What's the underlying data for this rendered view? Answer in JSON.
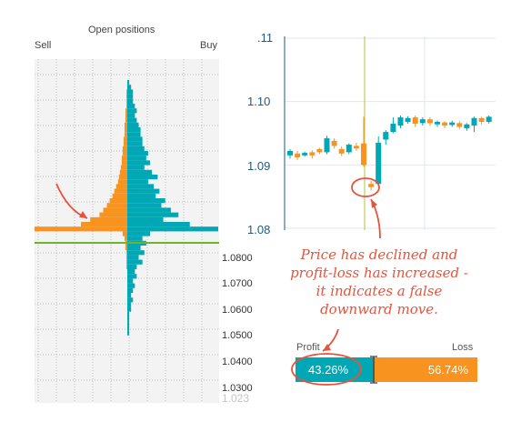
{
  "colors": {
    "sell": "#f7931e",
    "buy": "#00a8b5",
    "price_line": "#6cb32e",
    "annotation": "#e8523a",
    "axis": "#1e5a82",
    "grid": "#dfe7ee"
  },
  "panel": {
    "title": "Open positions",
    "sell_label": "Sell",
    "buy_label": "Buy",
    "price_ticks": [
      "1.0800",
      "1.0700",
      "1.0600",
      "1.0500",
      "1.0400",
      "1.0300"
    ],
    "faded_tick": "1.023"
  },
  "annotation": {
    "lines": [
      "Price has declined and",
      "profit-loss has increased -",
      "it indicates a false",
      "downward move."
    ]
  },
  "ratio": {
    "profit_label": "Profit",
    "loss_label": "Loss",
    "profit_text": "43.26%",
    "loss_text": "56.74%",
    "profit_pct": 43.26,
    "loss_pct": 56.74
  },
  "chart_data": [
    {
      "type": "bar",
      "title": "Open positions",
      "orientation": "horizontal",
      "x_axis": "price",
      "series": [
        {
          "name": "Sell",
          "values": [
            0,
            0,
            1,
            1,
            1,
            1,
            2,
            2,
            2,
            3,
            3,
            3,
            4,
            4,
            5,
            5,
            6,
            6,
            7,
            8,
            9,
            10,
            12,
            14,
            16,
            19,
            22,
            26,
            30,
            40,
            50,
            100,
            5,
            3,
            2,
            2,
            1,
            1,
            1,
            1,
            0,
            0,
            0,
            0,
            0,
            0,
            0,
            0,
            0,
            0,
            0,
            0,
            0,
            0
          ]
        },
        {
          "name": "Buy",
          "values": [
            1,
            2,
            3,
            3,
            3,
            4,
            5,
            4,
            5,
            6,
            7,
            7,
            8,
            8,
            9,
            11,
            10,
            12,
            9,
            13,
            16,
            11,
            14,
            17,
            15,
            20,
            18,
            23,
            27,
            19,
            33,
            48,
            12,
            8,
            10,
            7,
            9,
            6,
            8,
            5,
            4,
            5,
            3,
            4,
            3,
            2,
            3,
            2,
            2,
            1,
            1,
            1,
            1,
            1
          ]
        }
      ],
      "current_price": 1.0826,
      "price_ticks": [
        1.08,
        1.07,
        1.06,
        1.05,
        1.04,
        1.03
      ]
    },
    {
      "type": "candlestick",
      "y_ticks": [
        ".11",
        "1.10",
        "1.09",
        "1.08"
      ],
      "ylim": [
        1.08,
        1.11
      ],
      "candles": [
        {
          "o": 1.0915,
          "c": 1.0922,
          "h": 1.0925,
          "l": 1.091
        },
        {
          "o": 1.0918,
          "c": 1.0912,
          "h": 1.0922,
          "l": 1.0908
        },
        {
          "o": 1.0915,
          "c": 1.0919,
          "h": 1.0921,
          "l": 1.0913
        },
        {
          "o": 1.092,
          "c": 1.0915,
          "h": 1.0923,
          "l": 1.091
        },
        {
          "o": 1.0925,
          "c": 1.092,
          "h": 1.0927,
          "l": 1.0917
        },
        {
          "o": 1.092,
          "c": 1.0942,
          "h": 1.0946,
          "l": 1.0917
        },
        {
          "o": 1.0938,
          "c": 1.093,
          "h": 1.0942,
          "l": 1.0926
        },
        {
          "o": 1.0925,
          "c": 1.0918,
          "h": 1.0929,
          "l": 1.0914
        },
        {
          "o": 1.092,
          "c": 1.0932,
          "h": 1.0934,
          "l": 1.0917
        },
        {
          "o": 1.093,
          "c": 1.0926,
          "h": 1.0935,
          "l": 1.0922
        },
        {
          "o": 1.0934,
          "c": 1.09,
          "h": 1.0976,
          "l": 1.0897
        },
        {
          "o": 1.087,
          "c": 1.0865,
          "h": 1.0875,
          "l": 1.086
        },
        {
          "o": 1.087,
          "c": 1.0935,
          "h": 1.0945,
          "l": 1.0866
        },
        {
          "o": 1.094,
          "c": 1.0952,
          "h": 1.0955,
          "l": 1.0932
        },
        {
          "o": 1.0952,
          "c": 1.0965,
          "h": 1.0975,
          "l": 1.095
        },
        {
          "o": 1.0962,
          "c": 1.0975,
          "h": 1.0978,
          "l": 1.0958
        },
        {
          "o": 1.0968,
          "c": 1.0974,
          "h": 1.0977,
          "l": 1.0965
        },
        {
          "o": 1.0975,
          "c": 1.0965,
          "h": 1.0978,
          "l": 1.096
        },
        {
          "o": 1.0966,
          "c": 1.0972,
          "h": 1.0975,
          "l": 1.0962
        },
        {
          "o": 1.0972,
          "c": 1.0966,
          "h": 1.0975,
          "l": 1.0962
        },
        {
          "o": 1.0964,
          "c": 1.0968,
          "h": 1.097,
          "l": 1.096
        },
        {
          "o": 1.0967,
          "c": 1.0962,
          "h": 1.0969,
          "l": 1.0958
        },
        {
          "o": 1.0963,
          "c": 1.0967,
          "h": 1.097,
          "l": 1.096
        },
        {
          "o": 1.0966,
          "c": 1.096,
          "h": 1.0969,
          "l": 1.0957
        },
        {
          "o": 1.0958,
          "c": 1.0964,
          "h": 1.0966,
          "l": 1.0954
        },
        {
          "o": 1.0962,
          "c": 1.0974,
          "h": 1.0976,
          "l": 1.0952
        },
        {
          "o": 1.0974,
          "c": 1.0968,
          "h": 1.0976,
          "l": 1.0964
        },
        {
          "o": 1.0968,
          "c": 1.0976,
          "h": 1.0978,
          "l": 1.0965
        }
      ]
    }
  ]
}
